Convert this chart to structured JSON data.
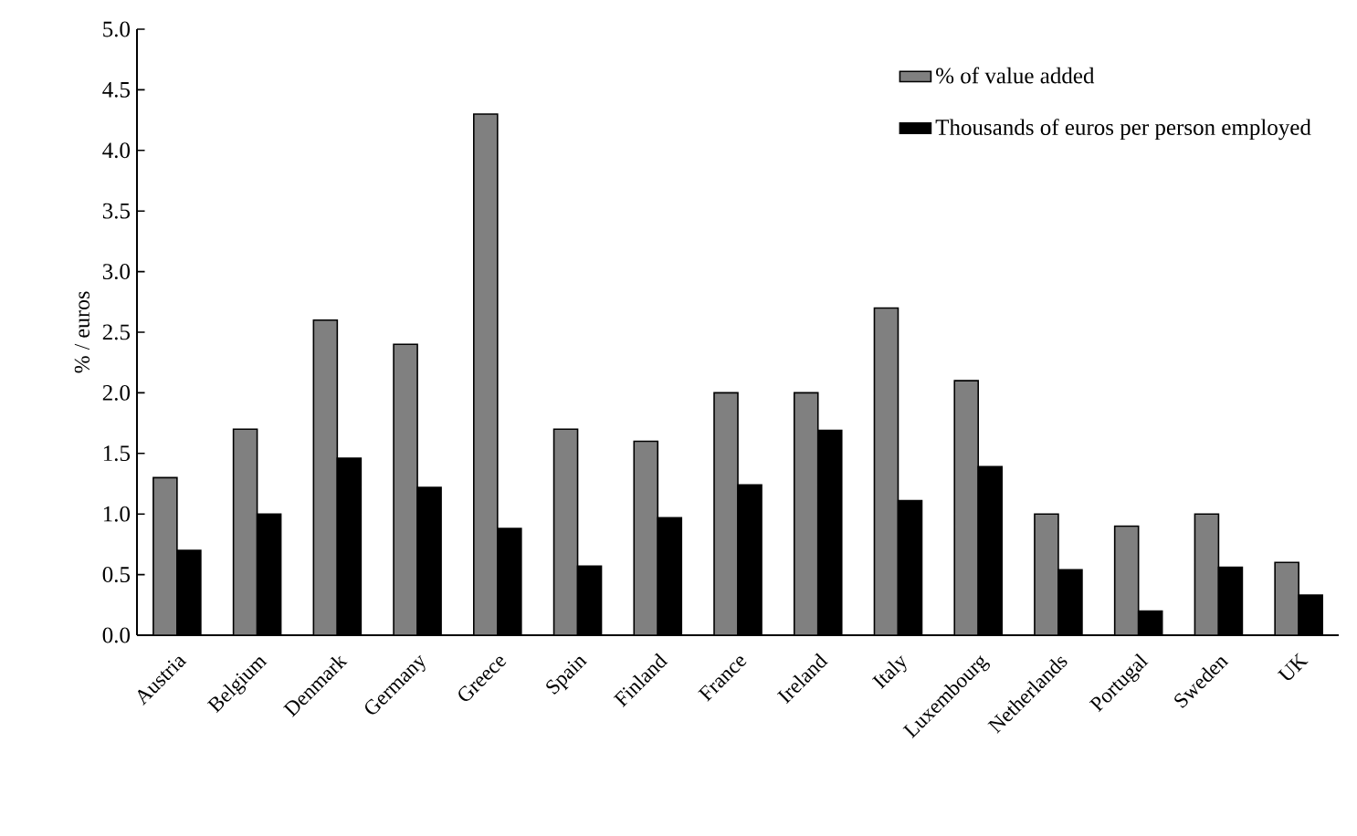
{
  "chart_data": {
    "type": "bar",
    "ylabel": "% / euros",
    "categories": [
      "Austria",
      "Belgium",
      "Denmark",
      "Germany",
      "Greece",
      "Spain",
      "Finland",
      "France",
      "Ireland",
      "Italy",
      "Luxembourg",
      "Netherlands",
      "Portugal",
      "Sweden",
      "UK"
    ],
    "series": [
      {
        "name": "% of value added",
        "color": "#808080",
        "values": [
          1.3,
          1.7,
          2.6,
          2.4,
          4.3,
          1.7,
          1.6,
          2.0,
          2.0,
          2.7,
          2.1,
          1.0,
          0.9,
          1.0,
          0.6
        ]
      },
      {
        "name": "Thousands of euros per person employed",
        "color": "#000000",
        "values": [
          0.7,
          1.0,
          1.46,
          1.22,
          0.88,
          0.57,
          0.97,
          1.24,
          1.69,
          1.11,
          1.39,
          0.54,
          0.2,
          0.56,
          0.33
        ]
      }
    ],
    "ylim": [
      0,
      5
    ],
    "yticks": [
      {
        "value": 0,
        "label": "0.0"
      },
      {
        "value": 0.5,
        "label": "0.5"
      },
      {
        "value": 1,
        "label": "1.0"
      },
      {
        "value": 1.5,
        "label": "1.5"
      },
      {
        "value": 2,
        "label": "2.0"
      },
      {
        "value": 2.5,
        "label": "2.5"
      },
      {
        "value": 3,
        "label": "3.0"
      },
      {
        "value": 3.5,
        "label": "3.5"
      },
      {
        "value": 4,
        "label": "4.0"
      },
      {
        "value": 4.5,
        "label": "4.5"
      },
      {
        "value": 5,
        "label": "5.0"
      }
    ],
    "legend": "top right"
  }
}
